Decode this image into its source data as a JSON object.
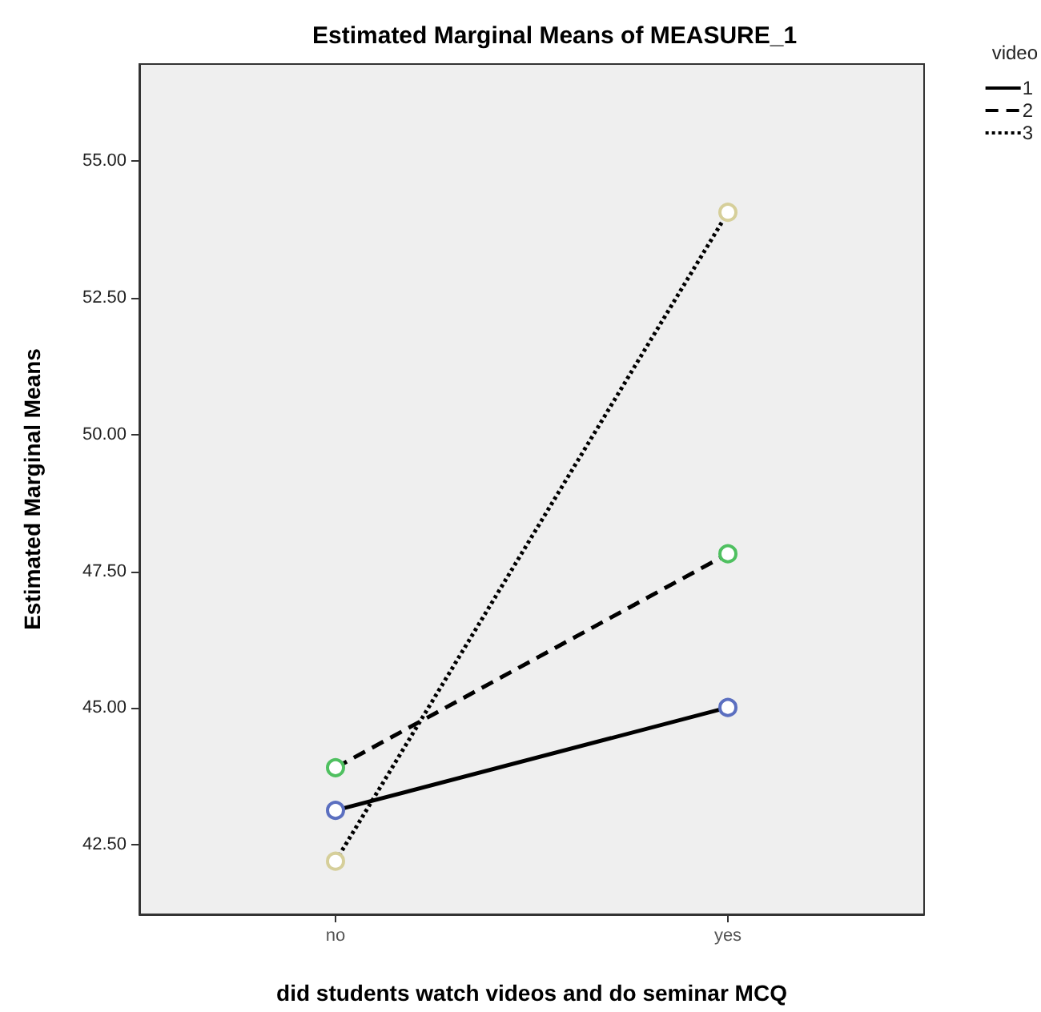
{
  "chart_data": {
    "type": "line",
    "title": "Estimated Marginal Means of MEASURE_1",
    "xlabel": "did students watch videos and do seminar MCQ",
    "ylabel": "Estimated Marginal Means",
    "legend_title": "video",
    "categories": [
      "no",
      "yes"
    ],
    "series": [
      {
        "name": "1",
        "color": "#000000",
        "line_style": "solid",
        "colors": [
          "#5b6fc0",
          "#5b6fc0"
        ],
        "values": [
          43.13,
          45.01
        ]
      },
      {
        "name": "2",
        "color": "#000000",
        "line_style": "dashed",
        "colors": [
          "#4fc060",
          "#4fc060"
        ],
        "values": [
          43.91,
          47.82
        ]
      },
      {
        "name": "3",
        "color": "#000000",
        "line_style": "dotted",
        "colors": [
          "#d6cf9a",
          "#d6cf9a"
        ],
        "values": [
          42.2,
          54.06
        ]
      }
    ],
    "ylim": [
      41.23,
      56.77
    ],
    "yticks": [
      {
        "value": 42.5,
        "label": "42.50"
      },
      {
        "value": 45,
        "label": "45.00"
      },
      {
        "value": 47.5,
        "label": "47.50"
      },
      {
        "value": 50,
        "label": "50.00"
      },
      {
        "value": 52.5,
        "label": "52.50"
      },
      {
        "value": 55,
        "label": "55.00"
      }
    ],
    "marker": "circle",
    "grid": false,
    "legend": "top right"
  }
}
